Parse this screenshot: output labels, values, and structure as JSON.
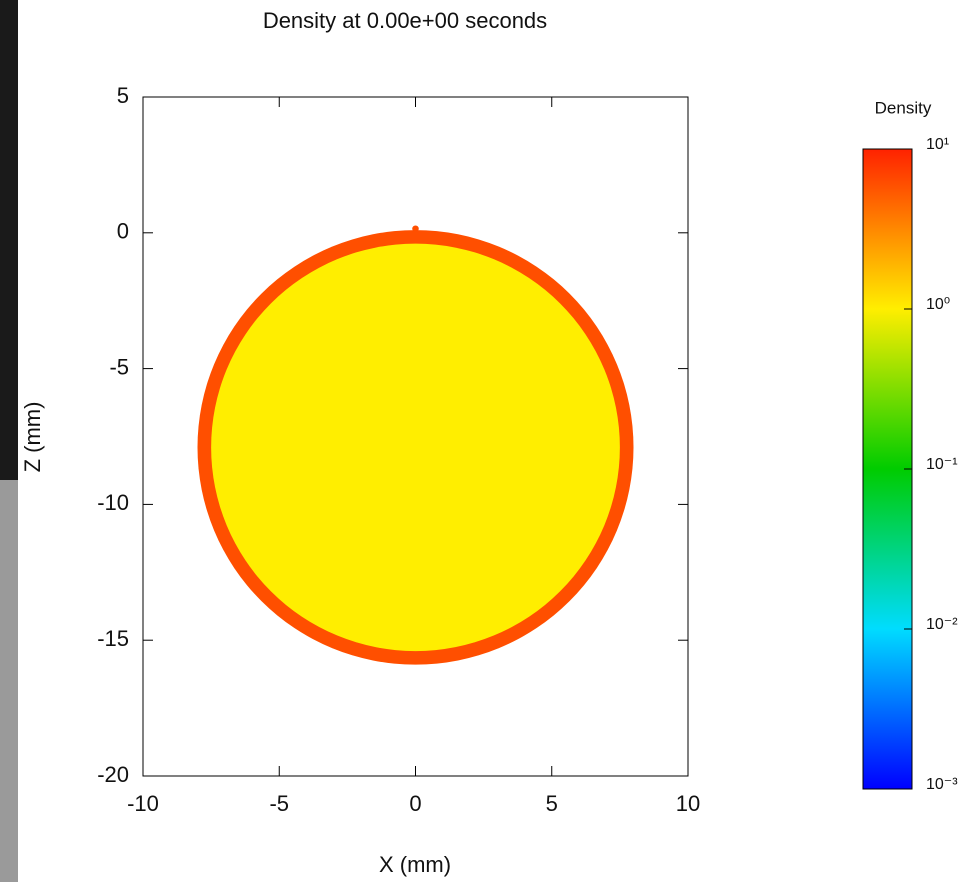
{
  "chart_data": {
    "type": "density-map",
    "title": "Density at 0.00e+00 seconds",
    "xlabel": "X (mm)",
    "ylabel": "Z (mm)",
    "xlim": [
      -10,
      10
    ],
    "ylim": [
      -20,
      5
    ],
    "xticks": [
      -10,
      -5,
      0,
      5,
      10
    ],
    "yticks": [
      -20,
      -15,
      -10,
      -5,
      0,
      5
    ],
    "regions": [
      {
        "cx": 0,
        "cy": -7.9,
        "r": 8,
        "value": 6
      },
      {
        "cx": 0,
        "cy": -7.9,
        "r": 7.5,
        "value": 1
      },
      {
        "cx": 0,
        "cy": 0.15,
        "r": 0.12,
        "value": 6
      }
    ],
    "colorbar": {
      "title": "Density",
      "log": true,
      "lim": [
        0.001,
        10
      ],
      "colormap": [
        "#0000ff",
        "#00dcff",
        "#00cc00",
        "#ffee00",
        "#ff2200"
      ],
      "ticks": [
        {
          "value": 10,
          "label": "10¹"
        },
        {
          "value": 1,
          "label": "10⁰"
        },
        {
          "value": 0.1,
          "label": "10⁻¹"
        },
        {
          "value": 0.01,
          "label": "10⁻²"
        },
        {
          "value": 0.001,
          "label": "10⁻³"
        }
      ]
    }
  }
}
